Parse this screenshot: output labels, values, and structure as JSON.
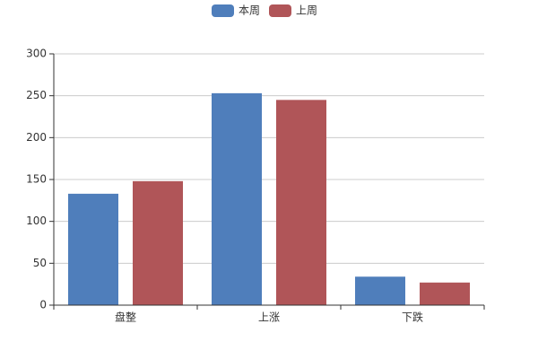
{
  "chart_data": {
    "type": "bar",
    "categories": [
      "盘整",
      "上涨",
      "下跌"
    ],
    "series": [
      {
        "name": "本周",
        "color": "#4f7ebb",
        "values": [
          133,
          253,
          34
        ]
      },
      {
        "name": "上周",
        "color": "#b05558",
        "values": [
          148,
          245,
          27
        ]
      }
    ],
    "ylim": [
      0,
      300
    ],
    "yticks": [
      0,
      50,
      100,
      150,
      200,
      250,
      300
    ],
    "grid": true
  }
}
